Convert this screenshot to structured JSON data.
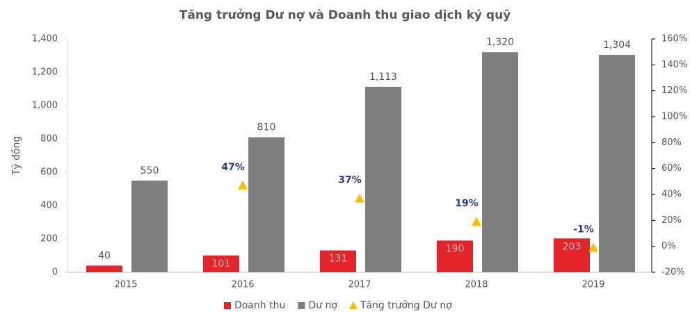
{
  "chart_data": {
    "type": "bar",
    "title": "Tăng trưởng Dư nợ và Doanh thu giao dịch ký quỹ",
    "ylabel": "Tỷ đồng",
    "categories": [
      "2015",
      "2016",
      "2017",
      "2018",
      "2019"
    ],
    "series": [
      {
        "name": "Doanh thu",
        "color": "#e3242b",
        "values": [
          40,
          101,
          131,
          190,
          203
        ]
      },
      {
        "name": "Dư nợ",
        "color": "#7f7f7f",
        "values": [
          550,
          810,
          1113,
          1320,
          1304
        ],
        "value_labels": [
          "550",
          "810",
          "1,113",
          "1,320",
          "1,304"
        ]
      },
      {
        "name": "Tăng trưởng Dư nợ",
        "type": "scatter",
        "marker": "triangle",
        "axis": "y2",
        "color": "#f5c000",
        "values": [
          null,
          47,
          37,
          19,
          -1
        ],
        "value_labels": [
          null,
          "47%",
          "37%",
          "19%",
          "-1%"
        ]
      }
    ],
    "ylim": [
      0,
      1400
    ],
    "yticks": [
      0,
      200,
      400,
      600,
      800,
      {
        "value": 1000,
        "label": "1,000"
      },
      {
        "value": 1200,
        "label": "1,200"
      },
      {
        "value": 1400,
        "label": "1,400"
      }
    ],
    "y2lim": [
      -20,
      160
    ],
    "y2ticks": [
      {
        "value": -20,
        "label": "-20%"
      },
      {
        "value": 0,
        "label": "0%"
      },
      {
        "value": 20,
        "label": "20%"
      },
      {
        "value": 40,
        "label": "40%"
      },
      {
        "value": 60,
        "label": "60%"
      },
      {
        "value": 80,
        "label": "80%"
      },
      {
        "value": 100,
        "label": "100%"
      },
      {
        "value": 120,
        "label": "120%"
      },
      {
        "value": 140,
        "label": "140%"
      },
      {
        "value": 160,
        "label": "160%"
      }
    ],
    "grid": false,
    "legend": "bottom"
  }
}
